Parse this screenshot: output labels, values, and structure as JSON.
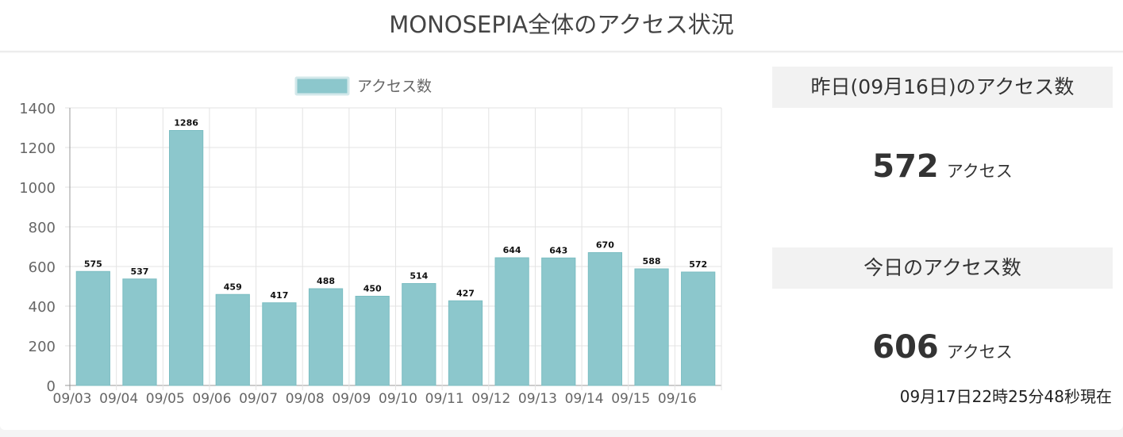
{
  "header": {
    "title": "MONOSEPIA全体のアクセス状況"
  },
  "yesterday": {
    "heading": "昨日(09月16日)のアクセス数",
    "value": "572",
    "unit": "アクセス"
  },
  "today": {
    "heading": "今日のアクセス数",
    "value": "606",
    "unit": "アクセス",
    "timestamp": "09月17日22時25分48秒現在"
  },
  "chart_data": {
    "type": "bar",
    "categories": [
      "09/03",
      "09/04",
      "09/05",
      "09/06",
      "09/07",
      "09/08",
      "09/09",
      "09/10",
      "09/11",
      "09/12",
      "09/13",
      "09/14",
      "09/15",
      "09/16"
    ],
    "series": [
      {
        "name": "アクセス数",
        "values": [
          575,
          537,
          1286,
          459,
          417,
          488,
          450,
          514,
          427,
          644,
          643,
          670,
          588,
          572
        ]
      }
    ],
    "ylim": [
      0,
      1400
    ],
    "yticks": [
      0,
      200,
      400,
      600,
      800,
      1000,
      1200,
      1400
    ],
    "grid": true,
    "legend": "top-center",
    "bar_color": "#8cc7cc",
    "bar_border_color": "#7bbdc2"
  }
}
